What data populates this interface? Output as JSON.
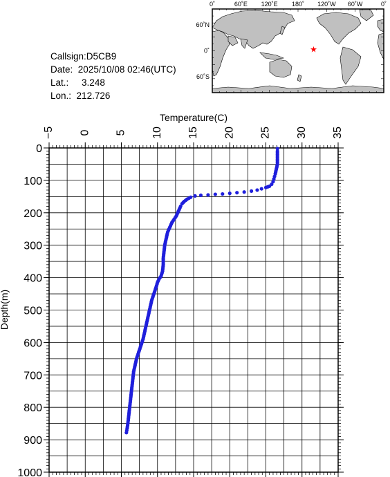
{
  "info": {
    "callsign_label": "Callsign:",
    "callsign": "D5CB9",
    "date_label": "Date:",
    "date": "2025/10/08 02:46(UTC)",
    "lat_label": "Lat.:",
    "lat": "3.248",
    "lon_label": "Lon.:",
    "lon": "212.726"
  },
  "map": {
    "top_labels": [
      "0˚",
      "60˚E",
      "120˚E",
      "180˚",
      "120˚W",
      "60˚W",
      "0˚"
    ],
    "left_labels": [
      "60˚N",
      "0˚",
      "60˚S"
    ],
    "station": {
      "lon": 212.726,
      "lat": 3.248
    },
    "land_color": "#c0c0c0",
    "ocean_color": "#ffffff",
    "marker_color": "#ff0000"
  },
  "chart_data": {
    "type": "scatter",
    "xlabel": "Temperature(C)",
    "ylabel": "Depth(m)",
    "xlim": [
      -5,
      35
    ],
    "ylim": [
      0,
      1000
    ],
    "y_inverted": true,
    "x_ticks": [
      -5,
      0,
      5,
      10,
      15,
      20,
      25,
      30,
      35
    ],
    "y_ticks": [
      0,
      100,
      200,
      300,
      400,
      500,
      600,
      700,
      800,
      900,
      1000
    ],
    "grid": true,
    "marker_color": "#1f1fdc",
    "points": [
      {
        "t": 26.6,
        "d": 2
      },
      {
        "t": 26.6,
        "d": 10
      },
      {
        "t": 26.6,
        "d": 20
      },
      {
        "t": 26.6,
        "d": 30
      },
      {
        "t": 26.6,
        "d": 40
      },
      {
        "t": 26.6,
        "d": 50
      },
      {
        "t": 26.5,
        "d": 60
      },
      {
        "t": 26.4,
        "d": 70
      },
      {
        "t": 26.3,
        "d": 80
      },
      {
        "t": 26.2,
        "d": 88
      },
      {
        "t": 26.1,
        "d": 96
      },
      {
        "t": 26.0,
        "d": 104
      },
      {
        "t": 25.8,
        "d": 112
      },
      {
        "t": 25.5,
        "d": 118
      },
      {
        "t": 25.0,
        "d": 122
      },
      {
        "t": 24.4,
        "d": 126
      },
      {
        "t": 23.8,
        "d": 130
      },
      {
        "t": 23.0,
        "d": 133
      },
      {
        "t": 22.0,
        "d": 136
      },
      {
        "t": 21.0,
        "d": 138
      },
      {
        "t": 20.0,
        "d": 140
      },
      {
        "t": 19.0,
        "d": 142
      },
      {
        "t": 18.0,
        "d": 143
      },
      {
        "t": 17.0,
        "d": 145
      },
      {
        "t": 16.0,
        "d": 146
      },
      {
        "t": 15.2,
        "d": 148
      },
      {
        "t": 14.6,
        "d": 152
      },
      {
        "t": 14.1,
        "d": 158
      },
      {
        "t": 13.7,
        "d": 165
      },
      {
        "t": 13.4,
        "d": 172
      },
      {
        "t": 13.2,
        "d": 180
      },
      {
        "t": 13.0,
        "d": 190
      },
      {
        "t": 12.8,
        "d": 200
      },
      {
        "t": 12.6,
        "d": 210
      },
      {
        "t": 12.3,
        "d": 220
      },
      {
        "t": 12.0,
        "d": 230
      },
      {
        "t": 11.8,
        "d": 240
      },
      {
        "t": 11.6,
        "d": 250
      },
      {
        "t": 11.4,
        "d": 260
      },
      {
        "t": 11.3,
        "d": 270
      },
      {
        "t": 11.2,
        "d": 280
      },
      {
        "t": 11.1,
        "d": 290
      },
      {
        "t": 11.0,
        "d": 300
      },
      {
        "t": 10.9,
        "d": 320
      },
      {
        "t": 10.8,
        "d": 340
      },
      {
        "t": 10.8,
        "d": 360
      },
      {
        "t": 10.7,
        "d": 380
      },
      {
        "t": 10.5,
        "d": 395
      },
      {
        "t": 10.2,
        "d": 405
      },
      {
        "t": 10.0,
        "d": 415
      },
      {
        "t": 9.8,
        "d": 430
      },
      {
        "t": 9.5,
        "d": 450
      },
      {
        "t": 9.2,
        "d": 470
      },
      {
        "t": 9.0,
        "d": 490
      },
      {
        "t": 8.8,
        "d": 510
      },
      {
        "t": 8.6,
        "d": 530
      },
      {
        "t": 8.4,
        "d": 550
      },
      {
        "t": 8.2,
        "d": 570
      },
      {
        "t": 8.0,
        "d": 590
      },
      {
        "t": 7.7,
        "d": 610
      },
      {
        "t": 7.4,
        "d": 630
      },
      {
        "t": 7.1,
        "d": 650
      },
      {
        "t": 6.9,
        "d": 670
      },
      {
        "t": 6.7,
        "d": 690
      },
      {
        "t": 6.6,
        "d": 710
      },
      {
        "t": 6.5,
        "d": 730
      },
      {
        "t": 6.4,
        "d": 750
      },
      {
        "t": 6.3,
        "d": 770
      },
      {
        "t": 6.2,
        "d": 790
      },
      {
        "t": 6.1,
        "d": 810
      },
      {
        "t": 6.0,
        "d": 830
      },
      {
        "t": 5.9,
        "d": 850
      },
      {
        "t": 5.8,
        "d": 865
      },
      {
        "t": 5.7,
        "d": 878
      }
    ]
  }
}
